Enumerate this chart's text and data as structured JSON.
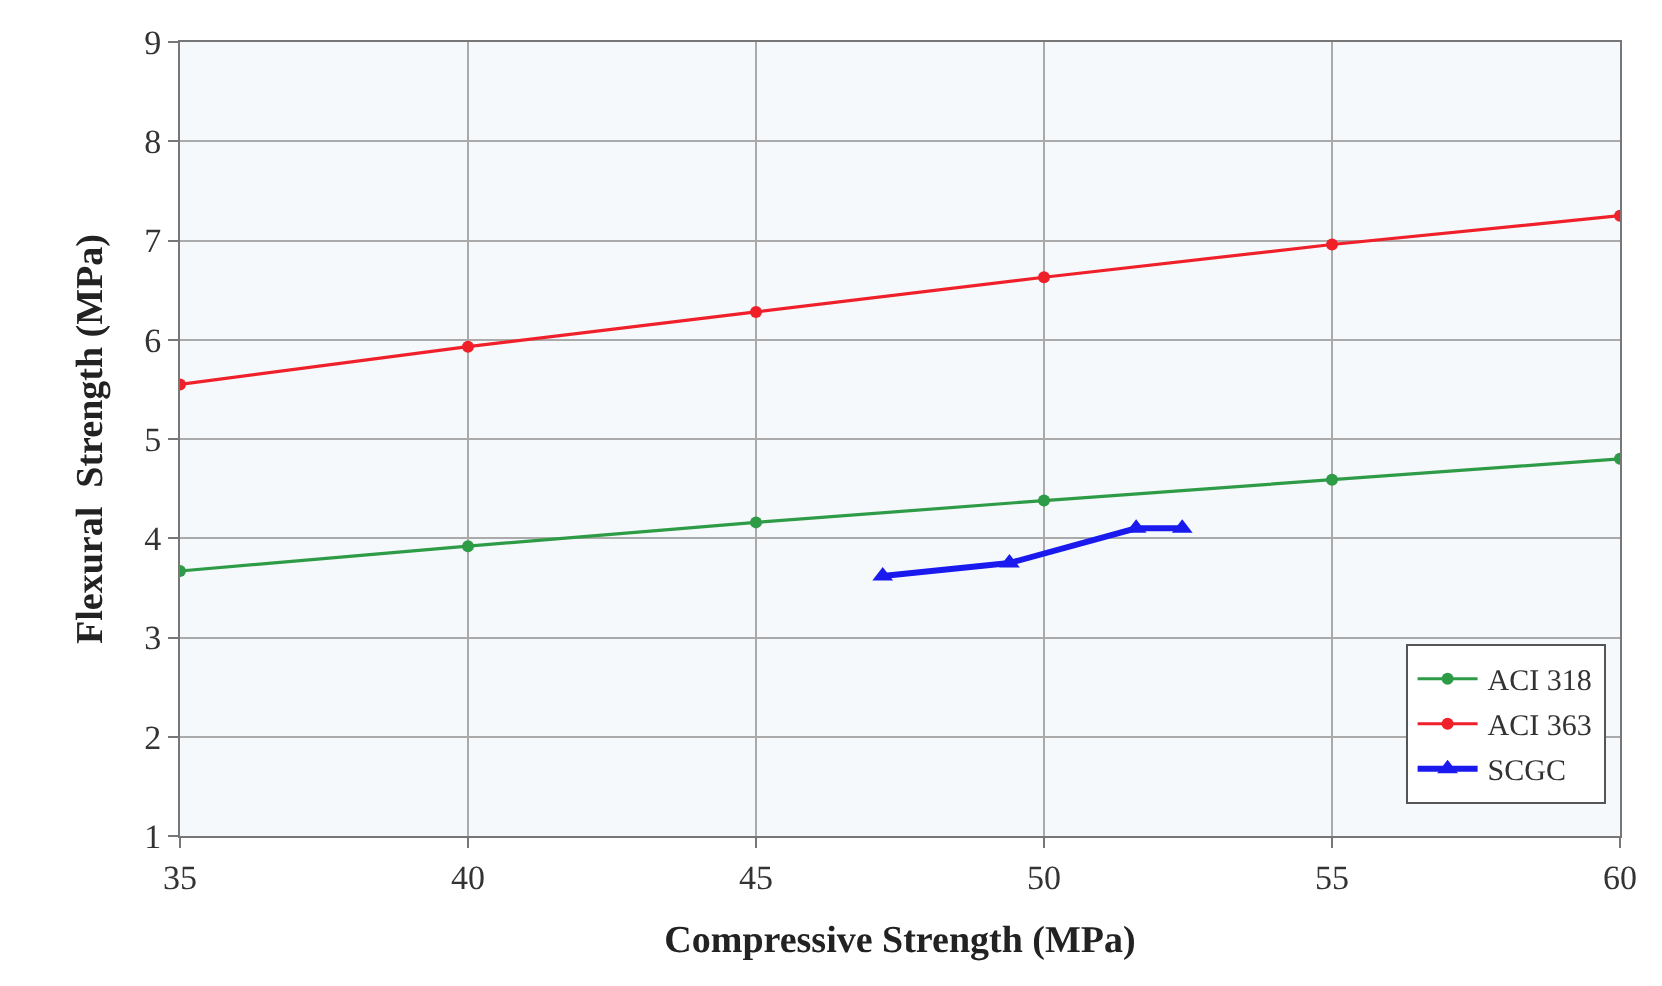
{
  "chart_data": {
    "type": "line",
    "xlabel": "Compressive Strength (MPa)",
    "ylabel": "Flexural  Strength (MPa)",
    "x": [
      35,
      40,
      45,
      50,
      55,
      60
    ],
    "series": [
      {
        "name": "ACI 318",
        "color": "#2e9b46",
        "values": [
          3.67,
          3.92,
          4.16,
          4.38,
          4.59,
          4.8
        ],
        "marker": "circle"
      },
      {
        "name": "ACI 363",
        "color": "#f0202a",
        "values": [
          5.55,
          5.93,
          6.28,
          6.63,
          6.96,
          7.25
        ],
        "marker": "circle"
      },
      {
        "name": "SCGC",
        "color": "#1a1aee",
        "x": [
          47.2,
          49.4,
          51.6,
          52.4
        ],
        "values": [
          3.62,
          3.75,
          4.1,
          4.1
        ],
        "marker": "triangle"
      }
    ],
    "xlim": [
      35,
      60
    ],
    "xticks": [
      35,
      40,
      45,
      50,
      55,
      60
    ],
    "ylim": [
      1,
      9
    ],
    "yticks": [
      1,
      2,
      3,
      4,
      5,
      6,
      7,
      8,
      9
    ],
    "grid": true,
    "legend": "bottom right",
    "line_style": "solid"
  }
}
